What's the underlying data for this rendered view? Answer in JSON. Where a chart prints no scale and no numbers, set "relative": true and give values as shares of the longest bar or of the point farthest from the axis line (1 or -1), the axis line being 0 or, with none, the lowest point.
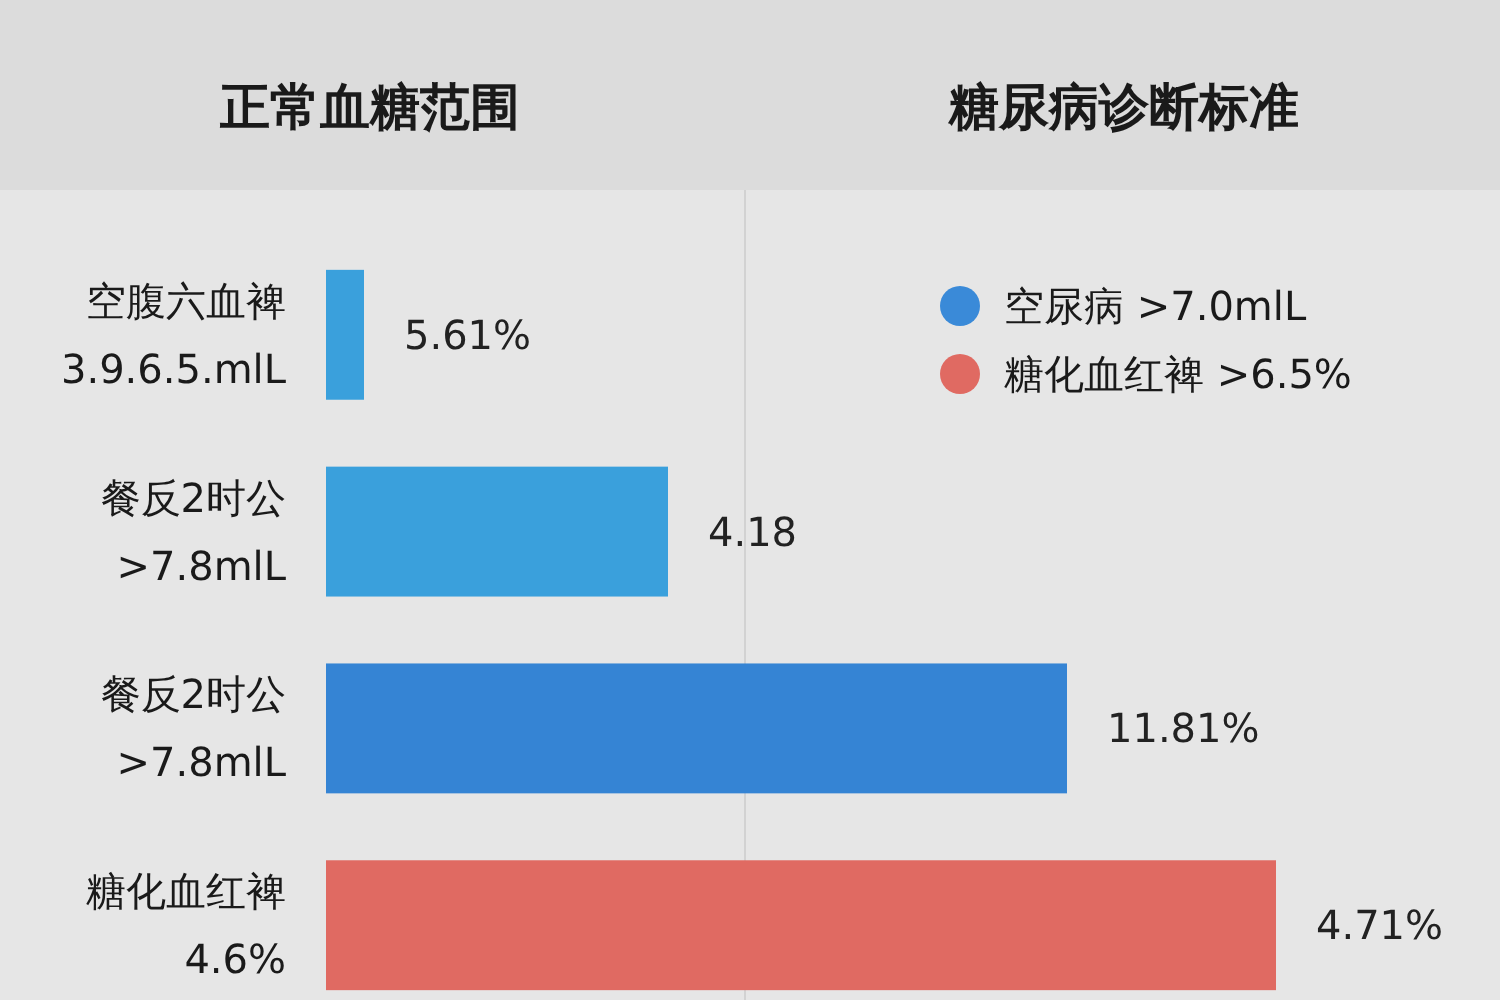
{
  "chart_data": {
    "type": "bar",
    "orientation": "horizontal",
    "relative": true,
    "title": "正常血糖范围",
    "subtitle": "糖尿病诊断标准",
    "categories": [
      "空腹六血裨 3.9.6.5.mlL",
      "餐反2时公 >7.8mlL",
      "餐反2时公 >7.8mlL",
      "糖化血红裨 4.6%"
    ],
    "series": [
      {
        "name": "空尿病 >7.0mlL",
        "color": "#3a8ad8",
        "colors": [
          "#3aa0dc",
          "#3aa0dc",
          "#3584d4",
          null
        ],
        "values": [
          0.04,
          0.36,
          0.78,
          null
        ]
      },
      {
        "name": "糖化血红裨 >6.5%",
        "color": "#e06a62",
        "values": [
          null,
          null,
          null,
          1
        ]
      }
    ],
    "value_labels": [
      "5.61%",
      "4.18",
      "11.81%",
      "4.71%"
    ],
    "legend": "top right"
  }
}
